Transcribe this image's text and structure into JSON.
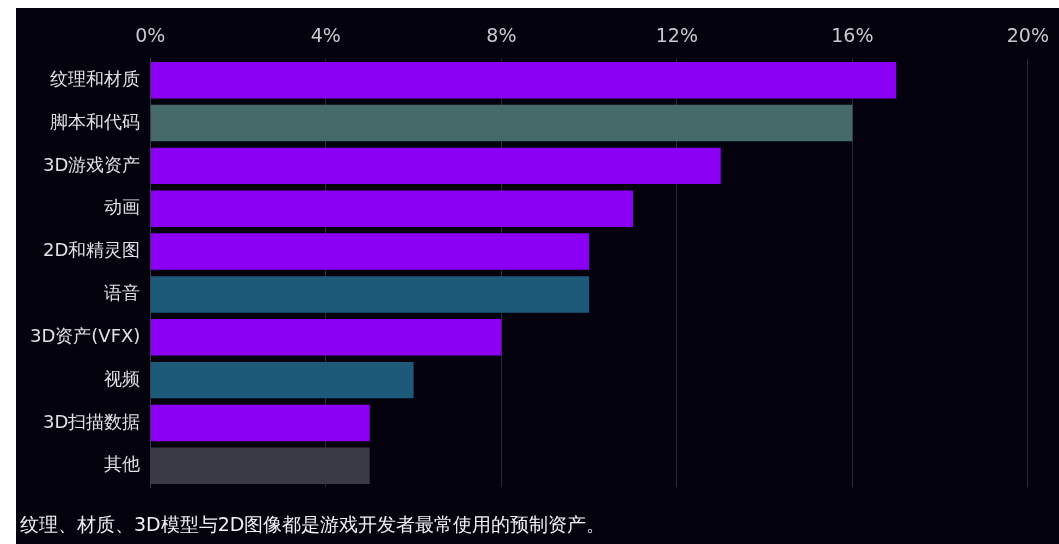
{
  "chart_data": {
    "type": "bar",
    "orientation": "horizontal",
    "categories": [
      "纹理和材质",
      "脚本和代码",
      "3D游戏资产",
      "动画",
      "2D和精灵图",
      "语音",
      "3D资产(VFX)",
      "视频",
      "3D扫描数据",
      "其他"
    ],
    "values": [
      17,
      16,
      13,
      11,
      10,
      10,
      8,
      6,
      5,
      5
    ],
    "colors": [
      "#8b00f5",
      "#466a6a",
      "#8b00f5",
      "#8b00f5",
      "#8b00f5",
      "#1d5a7a",
      "#8b00f5",
      "#1d5a7a",
      "#8b00f5",
      "#3a3a44"
    ],
    "xlim": [
      0,
      20
    ],
    "xticks": [
      {
        "value": 0,
        "label": "0%"
      },
      {
        "value": 4,
        "label": "4%"
      },
      {
        "value": 8,
        "label": "8%"
      },
      {
        "value": 12,
        "label": "12%"
      },
      {
        "value": 16,
        "label": "16%"
      },
      {
        "value": 20,
        "label": "20%"
      }
    ],
    "grid": "x",
    "legend": false,
    "annotations": [
      "纹理、材质、3D模型与2D图像都是游戏开发者最常使用的预制资产。"
    ]
  }
}
